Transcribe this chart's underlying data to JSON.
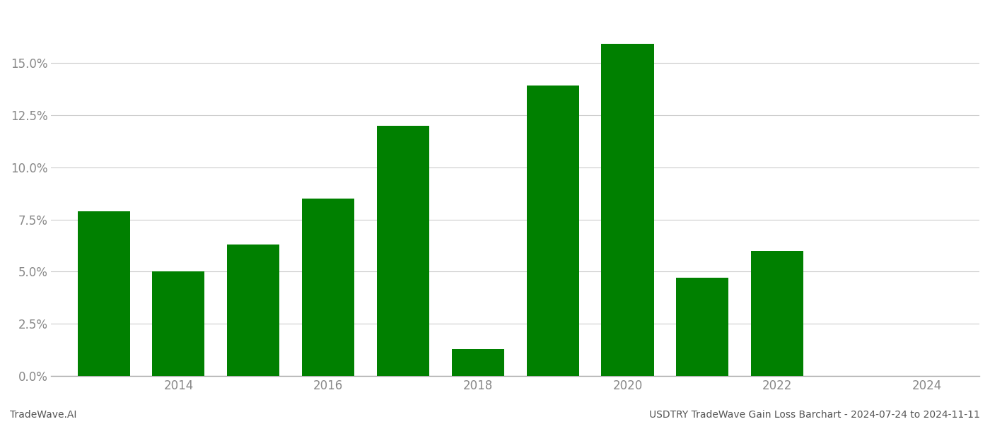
{
  "years": [
    2013,
    2014,
    2015,
    2016,
    2017,
    2018,
    2019,
    2020,
    2021,
    2022,
    2023
  ],
  "values": [
    0.079,
    0.05,
    0.063,
    0.085,
    0.12,
    0.013,
    0.139,
    0.159,
    0.047,
    0.06,
    0.0
  ],
  "bar_color": "#008000",
  "background_color": "#ffffff",
  "grid_color": "#cccccc",
  "axis_label_color": "#888888",
  "yticks": [
    0.0,
    0.025,
    0.05,
    0.075,
    0.1,
    0.125,
    0.15
  ],
  "ylim": [
    0,
    0.175
  ],
  "xtick_labels": [
    "2014",
    "2016",
    "2018",
    "2020",
    "2022",
    "2024"
  ],
  "xtick_positions": [
    2014,
    2016,
    2018,
    2020,
    2022,
    2024
  ],
  "footer_left": "TradeWave.AI",
  "footer_right": "USDTRY TradeWave Gain Loss Barchart - 2024-07-24 to 2024-11-11",
  "tick_fontsize": 12,
  "footer_fontsize": 10,
  "bar_width": 0.7
}
